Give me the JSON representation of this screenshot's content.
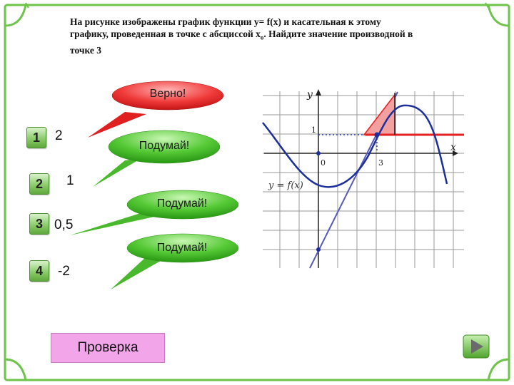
{
  "question": {
    "line1": "На рисунке изображены график функции y= f(x) и касательная к этому",
    "line2a": "графику, проведенная в точке с абсциссой x",
    "line2sub": "o",
    "line2b": ". Найдите значение производной в",
    "line3": "точке 3"
  },
  "feedback": {
    "correct": "Верно!",
    "think1": "Подумай!",
    "think2": "Подумай!",
    "think3": "Подумай!"
  },
  "options": [
    {
      "num": "1",
      "value": "2"
    },
    {
      "num": "2",
      "value": "1"
    },
    {
      "num": "3",
      "value": "0,5"
    },
    {
      "num": "4",
      "value": "-2"
    }
  ],
  "graph": {
    "y_axis_label": "y",
    "x_axis_label": "x",
    "origin_label": "0",
    "tick_x3": "3",
    "tick_y1": "1",
    "func_label": "y = f(x)"
  },
  "check_button": "Проверка",
  "icons": {
    "next": "play-arrow-icon"
  },
  "colors": {
    "bubble_fill": "#5fcf3a",
    "correct_fill": "#ee2c2c",
    "button_fill": "#f3a5ea",
    "frame": "#6ec44a",
    "tangent": "#5a5ab8",
    "curve": "#1d2f9c",
    "highlight": "#e42020"
  }
}
